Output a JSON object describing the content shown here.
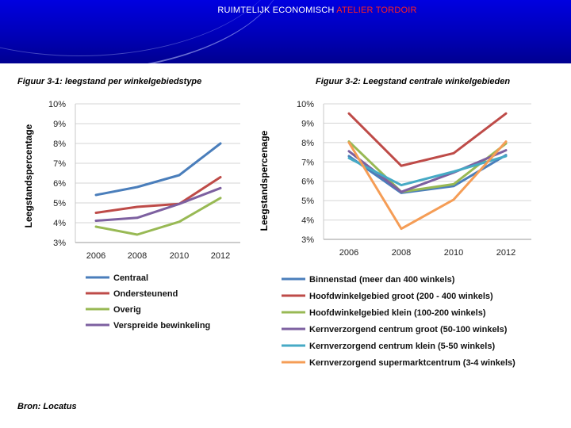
{
  "banner": {
    "title_part1": "RUIMTELIJK ECONOMISCH ",
    "title_part2": "ATELIER TORDOIR",
    "color_primary": "#ffffff",
    "color_accent": "#ff2020"
  },
  "source": "Bron: Locatus",
  "chart_data": [
    {
      "type": "line",
      "title": "Figuur 3-1: leegstand per winkelgebiedstype",
      "xlabel": "",
      "ylabel": "Leegstandspercentage",
      "categories": [
        "2006",
        "2008",
        "2010",
        "2012"
      ],
      "ylim": [
        3,
        10
      ],
      "yticks": [
        3,
        4,
        5,
        6,
        7,
        8,
        9,
        10
      ],
      "ytick_labels": [
        "3%",
        "4%",
        "5%",
        "6%",
        "7%",
        "8%",
        "9%",
        "10%"
      ],
      "grid": true,
      "legend": "bottom",
      "series": [
        {
          "name": "Centraal",
          "color": "#4a7ebb",
          "values": [
            5.4,
            5.8,
            6.4,
            8.0
          ]
        },
        {
          "name": "Ondersteunend",
          "color": "#be4b48",
          "values": [
            4.5,
            4.8,
            4.95,
            6.3
          ]
        },
        {
          "name": "Overig",
          "color": "#98b954",
          "values": [
            3.8,
            3.4,
            4.05,
            5.25
          ]
        },
        {
          "name": "Verspreide bewinkeling",
          "color": "#7d60a0",
          "values": [
            4.1,
            4.25,
            4.95,
            5.75
          ]
        }
      ]
    },
    {
      "type": "line",
      "title": "Figuur 3-2: Leegstand centrale winkelgebieden",
      "xlabel": "",
      "ylabel": "Leegstandspercenage",
      "categories": [
        "2006",
        "2008",
        "2010",
        "2012"
      ],
      "ylim": [
        3,
        10
      ],
      "yticks": [
        3,
        4,
        5,
        6,
        7,
        8,
        9,
        10
      ],
      "ytick_labels": [
        "3%",
        "4%",
        "5%",
        "6%",
        "7%",
        "8%",
        "9%",
        "10%"
      ],
      "grid": true,
      "legend": "bottom",
      "series": [
        {
          "name": "Binnenstad (meer dan 400 winkels)",
          "color": "#4a7ebb",
          "values": [
            7.3,
            5.4,
            5.75,
            7.35
          ]
        },
        {
          "name": "Hoofdwinkelgebied groot (200 - 400 winkels)",
          "color": "#be4b48",
          "values": [
            9.5,
            6.8,
            7.45,
            9.5
          ]
        },
        {
          "name": "Hoofdwinkelgebied klein (100-200 winkels)",
          "color": "#98b954",
          "values": [
            8.05,
            5.45,
            5.85,
            7.95
          ]
        },
        {
          "name": "Kernverzorgend centrum groot (50-100 winkels)",
          "color": "#7d60a0",
          "values": [
            7.55,
            5.45,
            6.45,
            7.6
          ]
        },
        {
          "name": "Kernverzorgend centrum klein (5-50 winkels)",
          "color": "#46aac5",
          "values": [
            7.2,
            5.8,
            6.5,
            7.3
          ]
        },
        {
          "name": "Kernverzorgend supermarktcentrum (3-4 winkels)",
          "color": "#f59d56",
          "values": [
            8.0,
            3.55,
            5.05,
            8.05
          ]
        }
      ]
    }
  ]
}
